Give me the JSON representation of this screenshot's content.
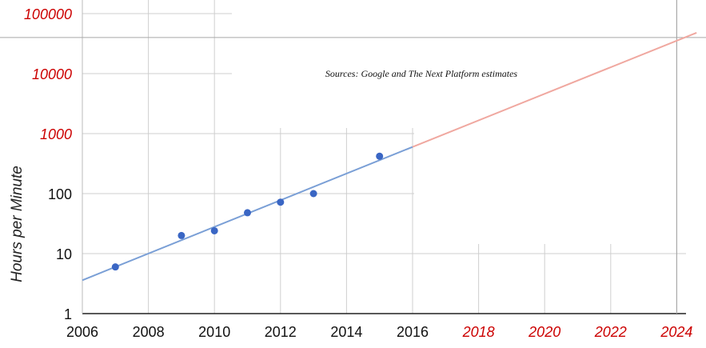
{
  "chart_data": {
    "type": "scatter",
    "source_note": "Sources: Google and The Next Platform estimates",
    "ylabel": "Hours per Minute",
    "yscale": "log",
    "y_ticks": [
      {
        "label": "1",
        "value": 1,
        "color": "#111111"
      },
      {
        "label": "10",
        "value": 10,
        "color": "#111111"
      },
      {
        "label": "100",
        "value": 100,
        "color": "#111111"
      },
      {
        "label": "1000",
        "value": 1000,
        "color": "#cc0000"
      },
      {
        "label": "10000",
        "value": 10000,
        "color": "#cc0000"
      },
      {
        "label": "100000",
        "value": 100000,
        "color": "#cc0000"
      }
    ],
    "x_ticks": [
      {
        "label": "2006",
        "value": 2006,
        "color": "#111111"
      },
      {
        "label": "2008",
        "value": 2008,
        "color": "#111111"
      },
      {
        "label": "2010",
        "value": 2010,
        "color": "#111111"
      },
      {
        "label": "2012",
        "value": 2012,
        "color": "#111111"
      },
      {
        "label": "2014",
        "value": 2014,
        "color": "#111111"
      },
      {
        "label": "2016",
        "value": 2016,
        "color": "#111111"
      },
      {
        "label": "2018",
        "value": 2018,
        "color": "#cc0000"
      },
      {
        "label": "2020",
        "value": 2020,
        "color": "#cc0000"
      },
      {
        "label": "2022",
        "value": 2022,
        "color": "#cc0000"
      },
      {
        "label": "2024",
        "value": 2024,
        "color": "#cc0000"
      }
    ],
    "xlim": [
      2006,
      2024.6
    ],
    "ylim": [
      1,
      100000
    ],
    "points": [
      {
        "x": 2007,
        "y": 6
      },
      {
        "x": 2009,
        "y": 20
      },
      {
        "x": 2010,
        "y": 24
      },
      {
        "x": 2011,
        "y": 48
      },
      {
        "x": 2012,
        "y": 72
      },
      {
        "x": 2013,
        "y": 100
      },
      {
        "x": 2015,
        "y": 420
      }
    ],
    "trend_fitted": {
      "x": [
        2006,
        2016
      ],
      "y": [
        3.6,
        600
      ],
      "color": "#7a9fd6"
    },
    "trend_projected": {
      "x": [
        2016,
        2024.6
      ],
      "y": [
        600,
        48000
      ],
      "color": "#f0a8a0"
    },
    "point_color": "#3a66c4",
    "grid": true,
    "crosshair": {
      "x": 2024,
      "y": 40000
    }
  }
}
